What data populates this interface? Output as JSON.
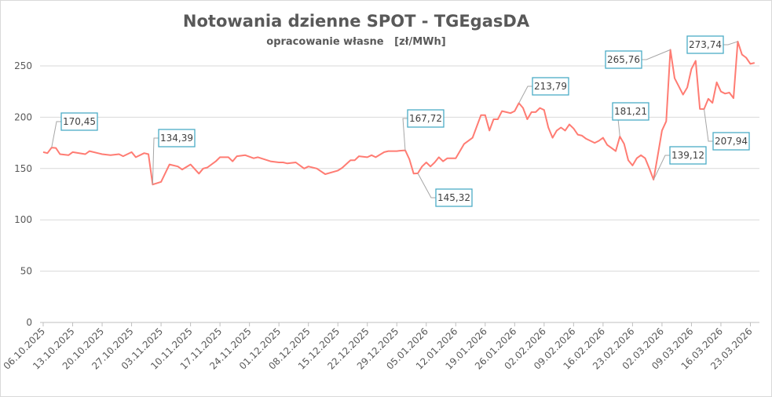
{
  "chart_data": {
    "type": "line",
    "title": "Notowania dzienne  SPOT  - TGEgasDA",
    "subtitle": "opracowanie własne   [zł/MWh]",
    "xlabel": "",
    "ylabel": "",
    "ylim": [
      0,
      275
    ],
    "yticks": [
      "0",
      "50",
      "100",
      "150",
      "200",
      "250"
    ],
    "xticks": [
      "06.10.2025",
      "13.10.2025",
      "20.10.2025",
      "27.10.2025",
      "03.11.2025",
      "10.11.2025",
      "17.11.2025",
      "24.11.2025",
      "01.12.2025",
      "08.12.2025",
      "15.12.2025",
      "22.12.2025",
      "29.12.2025",
      "05.01.2026",
      "12.01.2026",
      "19.01.2026",
      "26.01.2026",
      "02.02.2026",
      "09.02.2026",
      "16.02.2026",
      "23.02.2026",
      "02.03.2026",
      "09.03.2026",
      "16.03.2026",
      "23.03.2026"
    ],
    "grid": true,
    "legend": "none",
    "line_color": "#ff7c73",
    "callout_border_color": "#4bacc6",
    "series": [
      {
        "x": [
          "06.10.2025",
          "07.10.2025",
          "08.10.2025",
          "09.10.2025",
          "10.10.2025",
          "12.10.2025",
          "13.10.2025",
          "16.10.2025",
          "17.10.2025",
          "20.10.2025",
          "22.10.2025",
          "24.10.2025",
          "25.10.2025",
          "27.10.2025",
          "28.10.2025",
          "30.10.2025",
          "31.10.2025",
          "01.11.2025",
          "03.11.2025",
          "05.11.2025",
          "07.11.2025",
          "08.11.2025",
          "10.11.2025",
          "12.11.2025",
          "13.11.2025",
          "14.11.2025",
          "16.11.2025",
          "17.11.2025",
          "19.11.2025",
          "20.11.2025",
          "21.11.2025",
          "23.11.2025",
          "25.11.2025",
          "26.11.2025",
          "29.11.2025",
          "01.12.2025",
          "02.12.2025",
          "03.12.2025",
          "05.12.2025",
          "07.12.2025",
          "08.12.2025",
          "10.12.2025",
          "12.12.2025",
          "15.12.2025",
          "16.12.2025",
          "18.12.2025",
          "19.12.2025",
          "20.12.2025",
          "22.12.2025",
          "23.12.2025",
          "24.12.2025",
          "26.12.2025",
          "27.12.2025",
          "29.12.2025",
          "30.12.2025",
          "31.12.2025",
          "01.01.2026",
          "02.01.2026",
          "03.01.2026",
          "04.01.2026",
          "05.01.2026",
          "06.01.2026",
          "07.01.2026",
          "08.01.2026",
          "09.01.2026",
          "10.01.2026",
          "11.01.2026",
          "12.01.2026",
          "14.01.2026",
          "16.01.2026",
          "18.01.2026",
          "19.01.2026",
          "20.01.2026",
          "21.01.2026",
          "22.01.2026",
          "23.01.2026",
          "24.01.2026",
          "25.01.2026",
          "26.01.2026",
          "27.01.2026",
          "28.01.2026",
          "29.01.2026",
          "30.01.2026",
          "31.01.2026",
          "01.02.2026",
          "02.02.2026",
          "03.02.2026",
          "04.02.2026",
          "05.02.2026",
          "06.02.2026",
          "07.02.2026",
          "08.02.2026",
          "09.02.2026",
          "10.02.2026",
          "11.02.2026",
          "12.02.2026",
          "13.02.2026",
          "14.02.2026",
          "15.02.2026",
          "16.02.2026",
          "17.02.2026",
          "18.02.2026",
          "19.02.2026",
          "20.02.2026",
          "21.02.2026",
          "22.02.2026",
          "23.02.2026",
          "24.02.2026",
          "25.02.2026",
          "26.02.2026",
          "27.02.2026",
          "28.02.2026",
          "01.03.2026",
          "02.03.2026",
          "03.03.2026",
          "04.03.2026",
          "05.03.2026",
          "06.03.2026",
          "07.03.2026",
          "08.03.2026",
          "09.03.2026",
          "10.03.2026",
          "11.03.2026",
          "12.03.2026",
          "13.03.2026",
          "14.03.2026",
          "15.03.2026",
          "16.03.2026",
          "17.03.2026",
          "18.03.2026",
          "19.03.2026",
          "20.03.2026",
          "21.03.2026",
          "22.03.2026",
          "23.03.2026",
          "24.03.2026"
        ],
        "values": [
          166,
          165,
          170.45,
          170,
          164,
          163,
          166,
          164,
          167,
          164,
          163,
          164,
          162,
          166,
          161,
          165,
          164,
          134.39,
          137,
          154,
          152,
          149,
          154,
          145,
          150,
          151,
          157,
          161,
          161,
          157,
          162,
          163,
          160,
          161,
          157,
          156,
          156,
          155,
          156,
          150,
          152,
          150,
          144.5,
          148,
          150.6,
          158,
          158,
          162,
          161,
          163,
          161,
          166,
          167,
          167,
          167.4,
          167.72,
          159,
          145,
          145.32,
          152,
          156,
          152,
          156,
          161,
          157,
          160,
          160,
          160,
          174,
          180,
          202,
          202,
          187,
          198,
          198,
          206,
          205,
          204,
          206,
          213.79,
          209,
          198,
          205,
          205,
          209,
          207,
          190,
          180,
          187,
          190,
          187,
          193,
          189,
          183,
          182,
          179,
          177,
          175,
          177,
          180,
          173,
          170,
          167,
          181.21,
          174,
          158,
          153,
          160,
          163,
          160,
          150,
          139.12,
          163,
          187,
          196,
          265.76,
          238,
          230,
          222,
          229,
          247,
          255,
          208,
          207.94,
          218,
          214,
          234,
          225,
          223,
          224,
          218.6,
          273.74,
          261,
          258,
          252,
          253
        ]
      }
    ],
    "annotations": [
      {
        "date": "08.10.2025",
        "value": 170.45,
        "text": "170,45"
      },
      {
        "date": "01.11.2025",
        "value": 134.39,
        "text": "134,39"
      },
      {
        "date": "31.12.2025",
        "value": 167.72,
        "text": "167,72"
      },
      {
        "date": "03.01.2026",
        "value": 145.32,
        "text": "145,32"
      },
      {
        "date": "27.01.2026",
        "value": 213.79,
        "text": "213,79"
      },
      {
        "date": "20.02.2026",
        "value": 181.21,
        "text": "181,21"
      },
      {
        "date": "04.03.2026",
        "value": 265.76,
        "text": "265,76"
      },
      {
        "date": "28.02.2026",
        "value": 139.12,
        "text": "139,12"
      },
      {
        "date": "20.03.2026",
        "value": 273.74,
        "text": "273,74"
      },
      {
        "date": "12.03.2026",
        "value": 207.94,
        "text": "207,94"
      }
    ]
  }
}
